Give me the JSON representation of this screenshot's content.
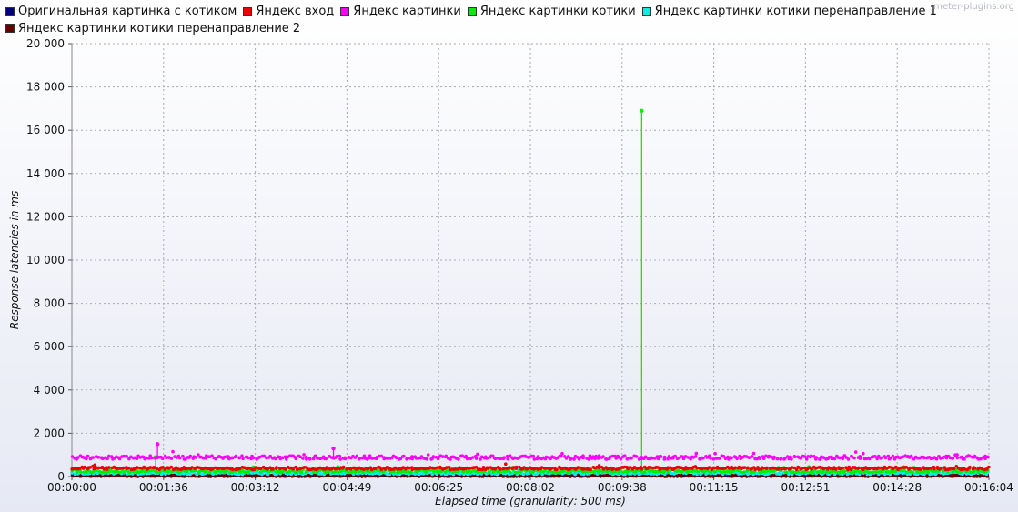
{
  "watermark": "jmeter-plugins.org",
  "chart_data": {
    "type": "scatter",
    "xlabel": "Elapsed time (granularity: 500 ms)",
    "ylabel": "Response latencies in ms",
    "xlim": [
      "00:00:00",
      "00:16:04"
    ],
    "ylim": [
      0,
      20000
    ],
    "x_ticks": [
      "00:00:00",
      "00:01:36",
      "00:03:12",
      "00:04:49",
      "00:06:25",
      "00:08:02",
      "00:09:38",
      "00:11:15",
      "00:12:51",
      "00:14:28",
      "00:16:04"
    ],
    "y_ticks": [
      "0",
      "2 000",
      "4 000",
      "6 000",
      "8 000",
      "10 000",
      "12 000",
      "14 000",
      "16 000",
      "18 000",
      "20 000"
    ],
    "grid": true,
    "legend_position": "top",
    "series": [
      {
        "name": "Оригинальная картинка с котиком",
        "color": "#000080",
        "typical_ms": 30,
        "spread_ms": 25
      },
      {
        "name": "Яндекс вход",
        "color": "#ee0000",
        "typical_ms": 380,
        "spread_ms": 60
      },
      {
        "name": "Яндекс картинки",
        "color": "#ff00ff",
        "typical_ms": 880,
        "spread_ms": 80,
        "peaks": [
          {
            "x": "00:01:30",
            "y": 1500
          },
          {
            "x": "00:04:35",
            "y": 1300
          }
        ]
      },
      {
        "name": "Яндекс картинки котики",
        "color": "#00ee00",
        "typical_ms": 250,
        "spread_ms": 70,
        "peaks": [
          {
            "x": "00:01:28",
            "y": 900
          },
          {
            "x": "00:09:59",
            "y": 16900
          }
        ]
      },
      {
        "name": "Яндекс картинки котики перенаправление 1",
        "color": "#00eeee",
        "typical_ms": 160,
        "spread_ms": 60
      },
      {
        "name": "Яндекс картинки котики перенаправление 2",
        "color": "#660000",
        "typical_ms": 60,
        "spread_ms": 30
      }
    ]
  }
}
